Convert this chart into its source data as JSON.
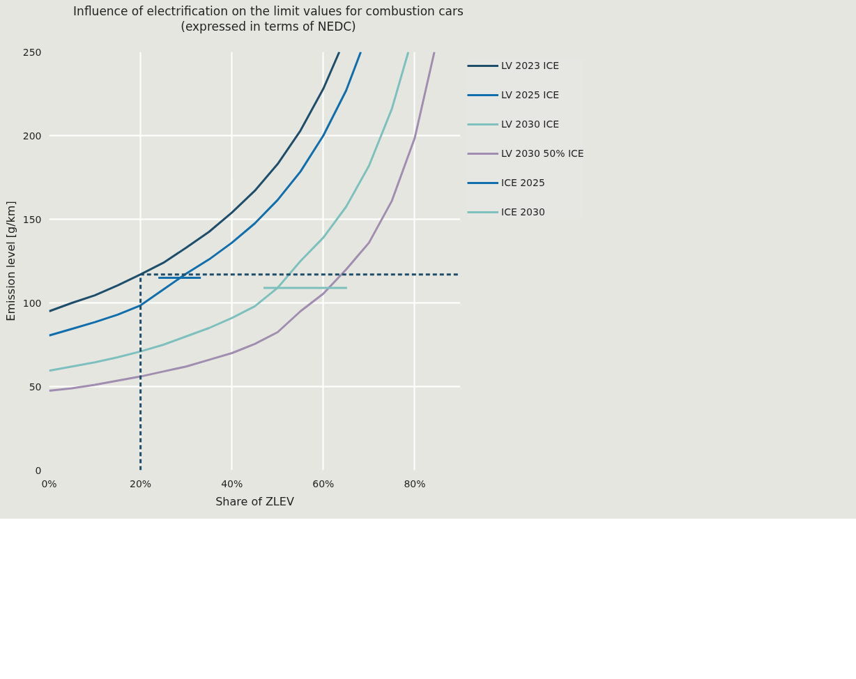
{
  "chart_data": {
    "type": "line",
    "title": "Influence of electrification on the limit values for combustion cars\n(expressed in terms of NEDC)",
    "xlabel": "Share of ZLEV",
    "ylabel": "Emission level [g/km]",
    "xlim": [
      0,
      90
    ],
    "xticks": [
      {
        "value": 0,
        "label": "0%"
      },
      {
        "value": 20,
        "label": "20%"
      },
      {
        "value": 40,
        "label": "40%"
      },
      {
        "value": 60,
        "label": "60%"
      },
      {
        "value": 80,
        "label": "80%"
      }
    ],
    "ylim": [
      0,
      250
    ],
    "yticks": [
      0,
      50,
      100,
      150,
      200,
      250
    ],
    "grid": true,
    "legend": "right",
    "line_style": "solid",
    "marker": "none",
    "series": [
      {
        "name": "LV 2023 ICE",
        "color": "#1f4e6b",
        "x": [
          0,
          5,
          10,
          15,
          20,
          25,
          30,
          35,
          40,
          45,
          50,
          55,
          60,
          63.5
        ],
        "values": [
          95,
          100,
          104.5,
          110.5,
          117,
          124,
          133,
          142.5,
          154,
          167,
          183,
          203,
          228,
          250
        ]
      },
      {
        "name": "LV 2025 ICE",
        "color": "#0f6eab",
        "x": [
          0,
          5,
          10,
          15,
          20,
          25,
          30,
          35,
          40,
          45,
          50,
          55,
          60,
          65,
          68.2
        ],
        "values": [
          80.5,
          84.5,
          88.5,
          93,
          98.5,
          108,
          117.5,
          126,
          136,
          147.5,
          161.5,
          178.5,
          200,
          227,
          250
        ]
      },
      {
        "name": "LV 2030 ICE",
        "color": "#7dc0bd",
        "x": [
          0,
          5,
          10,
          15,
          20,
          25,
          30,
          35,
          40,
          45,
          50,
          55,
          60,
          65,
          70,
          75,
          78.6
        ],
        "values": [
          59.5,
          62,
          64.5,
          67.5,
          71,
          75,
          80,
          85,
          91,
          98,
          109,
          125,
          139,
          157.5,
          182,
          216,
          250
        ]
      },
      {
        "name": "LV 2030 50% ICE",
        "color": "#a08db0",
        "x": [
          0,
          5,
          10,
          15,
          20,
          25,
          30,
          35,
          40,
          45,
          50,
          55,
          60,
          65,
          70,
          75,
          80,
          84.3
        ],
        "values": [
          47.5,
          49,
          51,
          53.5,
          56,
          59,
          62,
          66,
          70,
          75.5,
          82.5,
          95,
          105.5,
          120,
          136,
          161,
          198.5,
          250
        ]
      },
      {
        "name": "ICE 2025",
        "color": "#0f6eab",
        "x": [
          23.9,
          33.2
        ],
        "values": [
          115,
          115
        ]
      },
      {
        "name": "ICE 2030",
        "color": "#7dc0bd",
        "x": [
          46.9,
          65.2
        ],
        "values": [
          109,
          109
        ]
      },
      {
        "color": "#1f4e6b",
        "line_style": "dashed",
        "x": [
          20,
          20,
          90
        ],
        "values": [
          0,
          117,
          117
        ]
      }
    ]
  }
}
